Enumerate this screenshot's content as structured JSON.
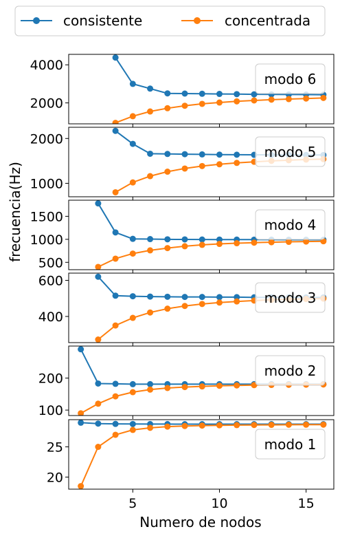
{
  "chart_data": {
    "type": "line",
    "xlabel": "Numero de nodos",
    "ylabel": "frecuencia(Hz)",
    "x_ticks": [
      5,
      10,
      15
    ],
    "xlim": [
      1.3,
      16.6
    ],
    "legend": {
      "placement": "top",
      "entries": [
        {
          "name": "consistente",
          "color": "#1f77b4"
        },
        {
          "name": "concentrada",
          "color": "#ff7f0e"
        }
      ]
    },
    "panels": [
      {
        "label": "modo 6",
        "ylim": [
          900,
          4550
        ],
        "yticks": [
          2000,
          4000
        ],
        "series": [
          {
            "name": "consistente",
            "x": [
              4,
              5,
              6,
              7,
              8,
              9,
              10,
              11,
              12,
              13,
              14,
              15,
              16
            ],
            "values": [
              4380,
              3000,
              2750,
              2500,
              2490,
              2480,
              2470,
              2460,
              2450,
              2445,
              2440,
              2435,
              2430
            ]
          },
          {
            "name": "concentrada",
            "x": [
              4,
              5,
              6,
              7,
              8,
              9,
              10,
              11,
              12,
              13,
              14,
              15,
              16
            ],
            "values": [
              950,
              1300,
              1550,
              1720,
              1850,
              1950,
              2020,
              2080,
              2130,
              2170,
              2200,
              2230,
              2260
            ]
          }
        ]
      },
      {
        "label": "modo 5",
        "ylim": [
          700,
          2250
        ],
        "yticks": [
          1000,
          2000
        ],
        "series": [
          {
            "name": "consistente",
            "x": [
              4,
              5,
              6,
              7,
              8,
              9,
              10,
              11,
              12,
              13,
              14,
              15,
              16
            ],
            "values": [
              2170,
              1880,
              1660,
              1655,
              1650,
              1645,
              1640,
              1638,
              1636,
              1634,
              1633,
              1632,
              1631
            ]
          },
          {
            "name": "concentrada",
            "x": [
              4,
              5,
              6,
              7,
              8,
              9,
              10,
              11,
              12,
              13,
              14,
              15,
              16
            ],
            "values": [
              800,
              1020,
              1160,
              1260,
              1330,
              1385,
              1425,
              1455,
              1480,
              1500,
              1515,
              1530,
              1540
            ]
          }
        ]
      },
      {
        "label": "modo 4",
        "ylim": [
          340,
          1850
        ],
        "yticks": [
          500,
          1000,
          1500
        ],
        "series": [
          {
            "name": "consistente",
            "x": [
              3,
              4,
              5,
              6,
              7,
              8,
              9,
              10,
              11,
              12,
              13,
              14,
              15,
              16
            ],
            "values": [
              1780,
              1150,
              1010,
              1005,
              1000,
              998,
              996,
              995,
              994,
              993,
              992,
              991,
              990,
              990
            ]
          },
          {
            "name": "concentrada",
            "x": [
              3,
              4,
              5,
              6,
              7,
              8,
              9,
              10,
              11,
              12,
              13,
              14,
              15,
              16
            ],
            "values": [
              400,
              580,
              690,
              760,
              810,
              850,
              880,
              900,
              915,
              927,
              937,
              945,
              952,
              958
            ]
          }
        ]
      },
      {
        "label": "modo 3",
        "ylim": [
          255,
          640
        ],
        "yticks": [
          400,
          600
        ],
        "series": [
          {
            "name": "consistente",
            "x": [
              3,
              4,
              5,
              6,
              7,
              8,
              9,
              10,
              11,
              12,
              13,
              14,
              15,
              16
            ],
            "values": [
              620,
              515,
              512,
              510,
              509,
              508,
              508,
              507,
              507,
              506,
              506,
              506,
              505,
              505
            ]
          },
          {
            "name": "concentrada",
            "x": [
              3,
              4,
              5,
              6,
              7,
              8,
              9,
              10,
              11,
              12,
              13,
              14,
              15,
              16
            ],
            "values": [
              272,
              350,
              392,
              422,
              443,
              458,
              469,
              477,
              483,
              488,
              492,
              495,
              497,
              499
            ]
          }
        ]
      },
      {
        "label": "modo 2",
        "ylim": [
          83,
          300
        ],
        "yticks": [
          100,
          200
        ],
        "series": [
          {
            "name": "consistente",
            "x": [
              2,
              3,
              4,
              5,
              6,
              7,
              8,
              9,
              10,
              11,
              12,
              13,
              14,
              15,
              16
            ],
            "values": [
              290,
              183,
              182,
              181,
              181,
              181,
              181,
              181,
              181,
              181,
              181,
              181,
              181,
              181,
              181
            ]
          },
          {
            "name": "concentrada",
            "x": [
              2,
              3,
              4,
              5,
              6,
              7,
              8,
              9,
              10,
              11,
              12,
              13,
              14,
              15,
              16
            ],
            "values": [
              90,
              120,
              143,
              156,
              164,
              169,
              172,
              174,
              176,
              177,
              178,
              178.5,
              179,
              179.5,
              180
            ]
          }
        ]
      },
      {
        "label": "modo 1",
        "ylim": [
          18,
          29.5
        ],
        "yticks": [
          20,
          25
        ],
        "series": [
          {
            "name": "consistente",
            "x": [
              2,
              3,
              4,
              5,
              6,
              7,
              8,
              9,
              10,
              11,
              12,
              13,
              14,
              15,
              16
            ],
            "values": [
              29.0,
              28.85,
              28.8,
              28.78,
              28.77,
              28.77,
              28.76,
              28.76,
              28.76,
              28.76,
              28.76,
              28.76,
              28.76,
              28.76,
              28.76
            ]
          },
          {
            "name": "concentrada",
            "x": [
              2,
              3,
              4,
              5,
              6,
              7,
              8,
              9,
              10,
              11,
              12,
              13,
              14,
              15,
              16
            ],
            "values": [
              18.5,
              25.0,
              27.0,
              27.8,
              28.15,
              28.35,
              28.45,
              28.52,
              28.57,
              28.6,
              28.62,
              28.64,
              28.66,
              28.67,
              28.68
            ]
          }
        ]
      }
    ]
  }
}
